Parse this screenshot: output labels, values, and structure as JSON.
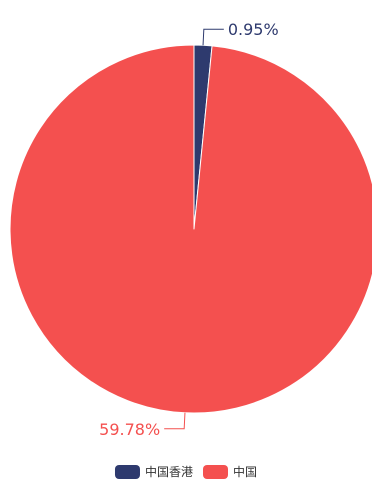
{
  "chart_data": {
    "type": "pie",
    "slices": [
      {
        "name": "中国香港",
        "value": 0.95,
        "label": "0.95%",
        "color": "#2e3a6e"
      },
      {
        "name": "中国",
        "value": 59.78,
        "label": "59.78%",
        "color": "#f4504f"
      }
    ],
    "legend_position": "bottom"
  }
}
